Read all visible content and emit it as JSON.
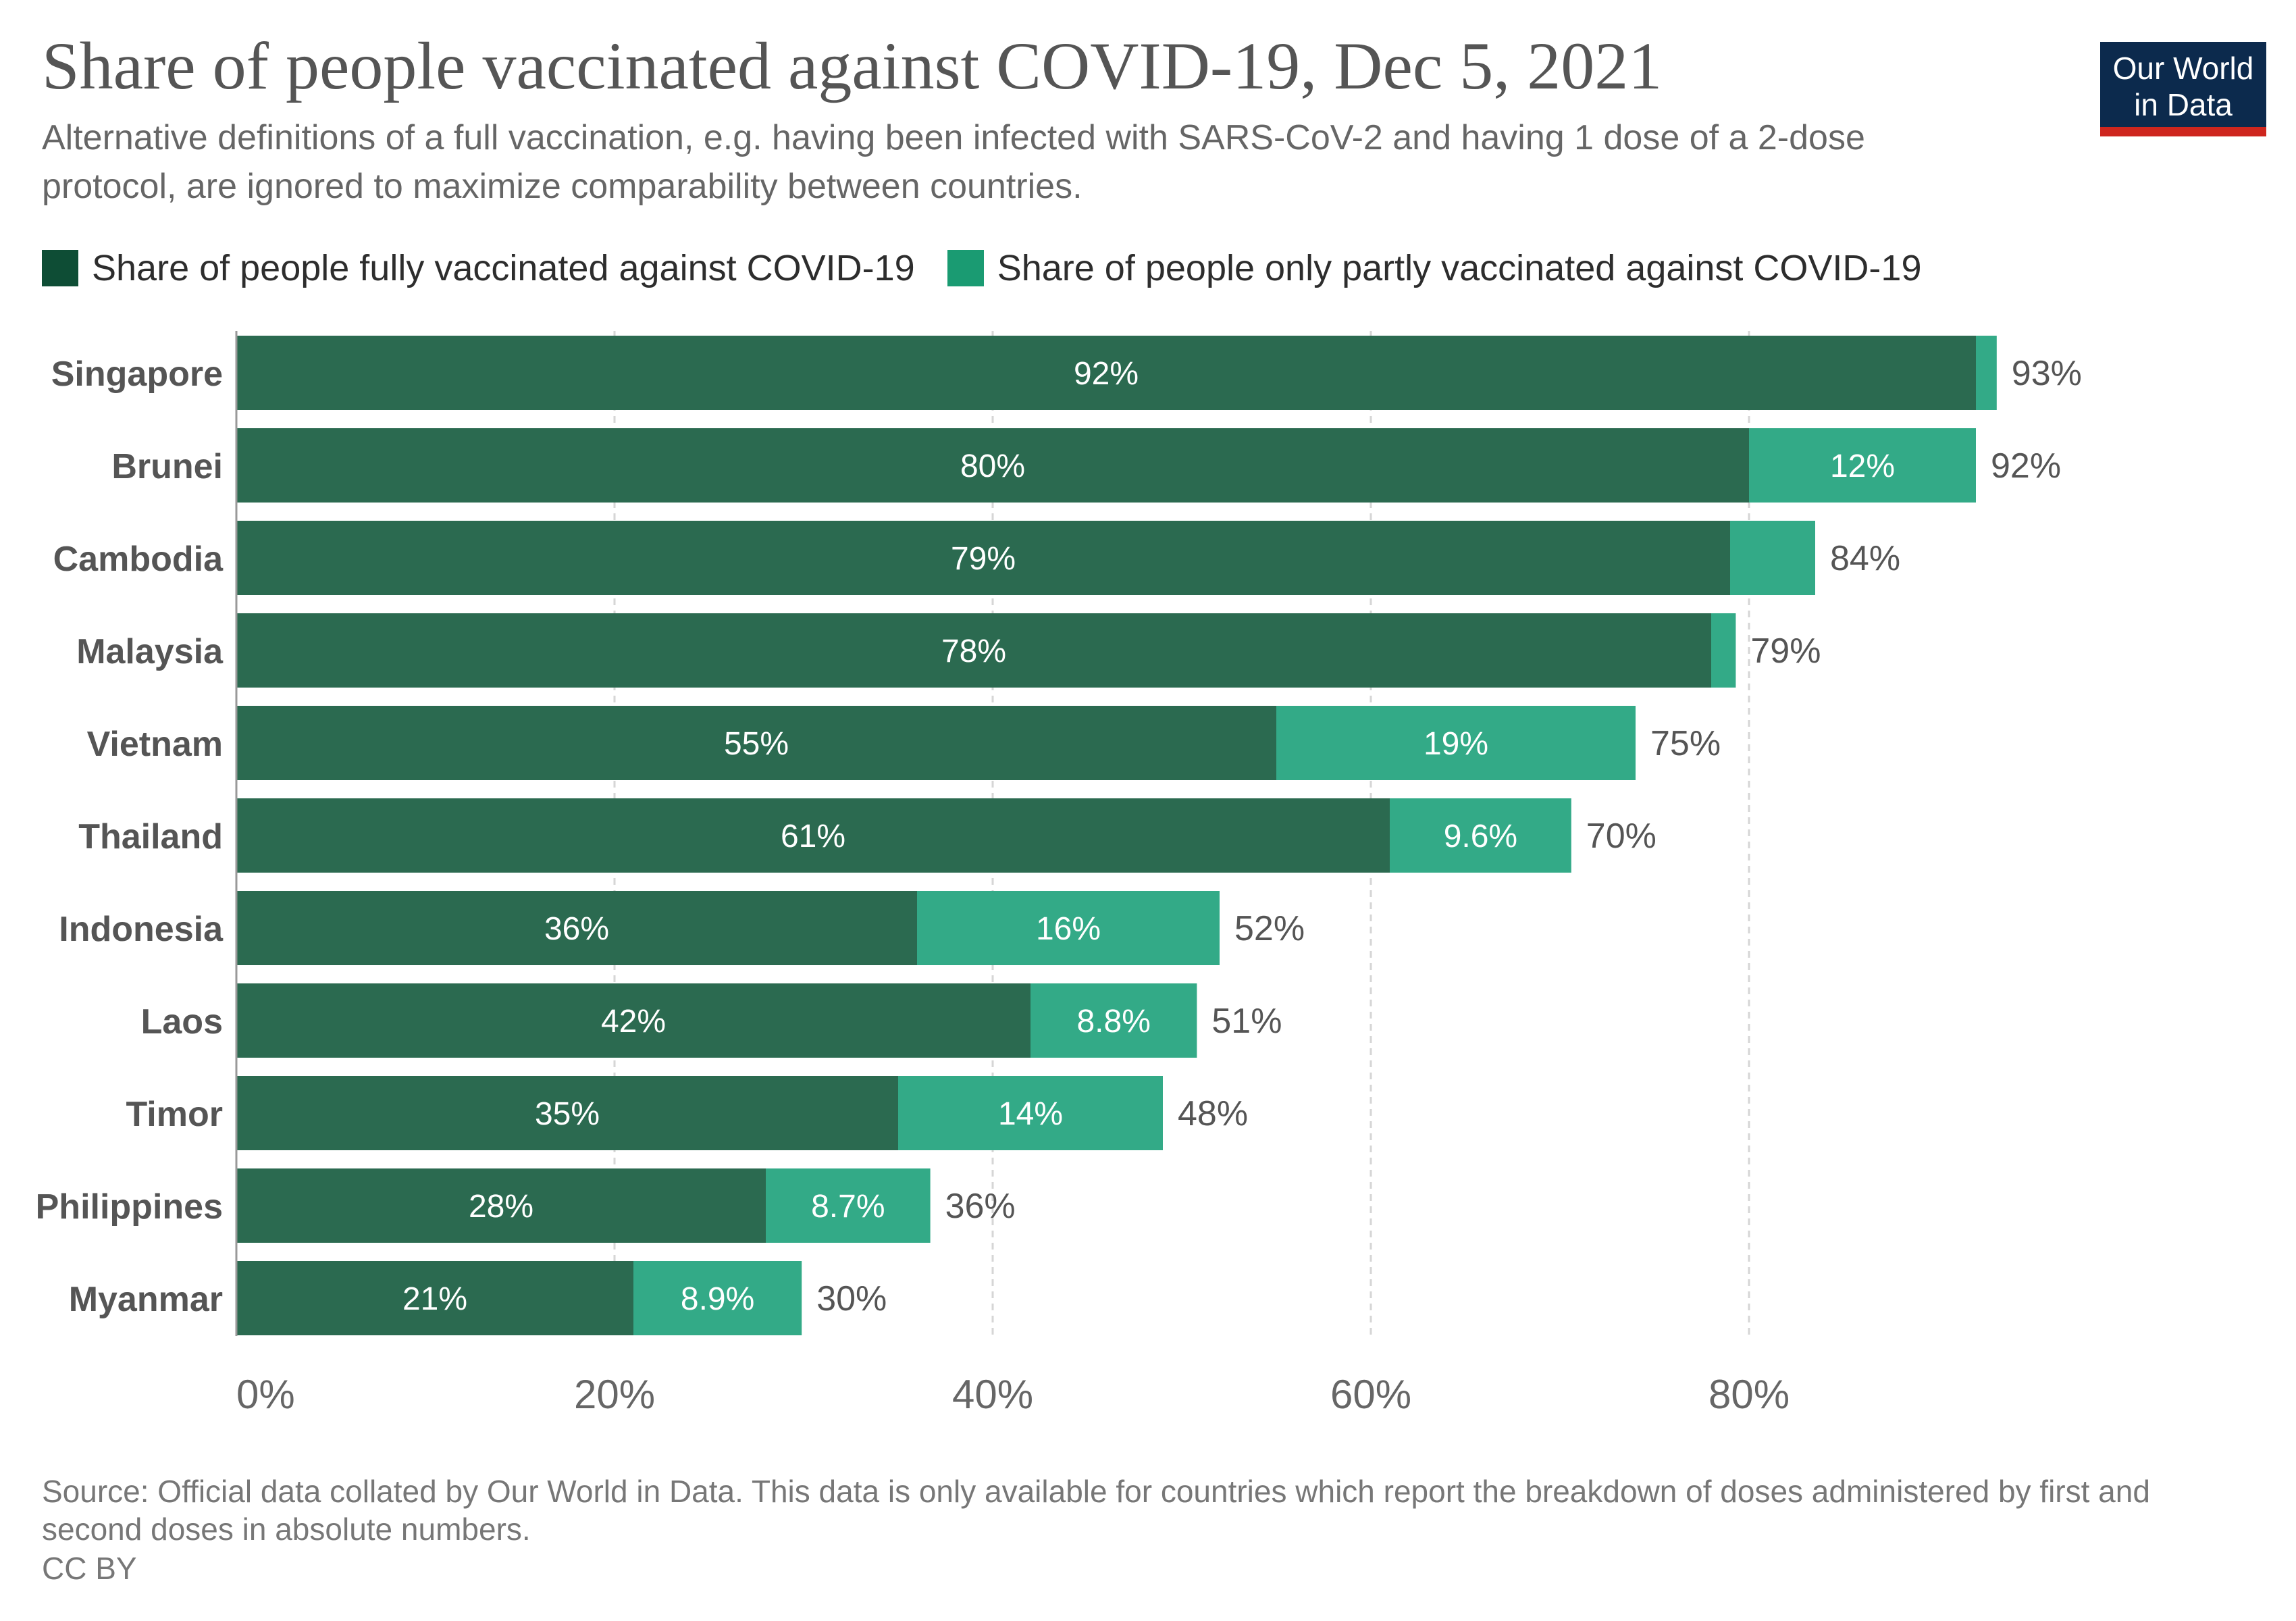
{
  "header": {
    "title": "Share of people vaccinated against COVID-19, Dec 5, 2021",
    "subtitle": "Alternative definitions of a full vaccination, e.g. having been infected with SARS-CoV-2 and having 1 dose of a 2-dose protocol, are ignored to maximize comparability between countries."
  },
  "logo": {
    "line1": "Our World",
    "line2": "in Data"
  },
  "legend": {
    "full": "Share of people fully vaccinated against COVID-19",
    "partial": "Share of people only partly vaccinated against COVID-19"
  },
  "colors": {
    "full": "#2b6a50",
    "partial": "#33aa87",
    "legend_full": "#0e4d35",
    "legend_partial": "#1a9b72",
    "logo_bg": "#0c2a4d",
    "logo_accent": "#ce261e"
  },
  "chart_data": {
    "type": "bar",
    "orientation": "horizontal",
    "stacked": true,
    "categories": [
      "Singapore",
      "Brunei",
      "Cambodia",
      "Malaysia",
      "Vietnam",
      "Thailand",
      "Indonesia",
      "Laos",
      "Timor",
      "Philippines",
      "Myanmar"
    ],
    "series": [
      {
        "name": "Share of people fully vaccinated against COVID-19",
        "values": [
          92,
          80,
          79,
          78,
          55,
          61,
          36,
          42,
          35,
          28,
          21
        ],
        "labels": [
          "92%",
          "80%",
          "79%",
          "78%",
          "55%",
          "61%",
          "36%",
          "42%",
          "35%",
          "28%",
          "21%"
        ]
      },
      {
        "name": "Share of people only partly vaccinated against COVID-19",
        "values": [
          1.1,
          12,
          4.5,
          1.3,
          19,
          9.6,
          16,
          8.8,
          14,
          8.7,
          8.9
        ],
        "labels": [
          "",
          "12%",
          "",
          "",
          "19%",
          "9.6%",
          "16%",
          "8.8%",
          "14%",
          "8.7%",
          "8.9%"
        ]
      }
    ],
    "totals": [
      "93%",
      "92%",
      "84%",
      "79%",
      "75%",
      "70%",
      "52%",
      "51%",
      "48%",
      "36%",
      "30%"
    ],
    "xlim": [
      0,
      100
    ],
    "xticks": [
      0,
      20,
      40,
      60,
      80
    ],
    "xtick_labels": [
      "0%",
      "20%",
      "40%",
      "60%",
      "80%"
    ],
    "grid": true,
    "legend": "top-left"
  },
  "footer": {
    "source": "Source: Official data collated by Our World in Data. This data is only available for countries which report the breakdown of doses administered by first and second doses in absolute numbers.",
    "license": "CC BY"
  }
}
